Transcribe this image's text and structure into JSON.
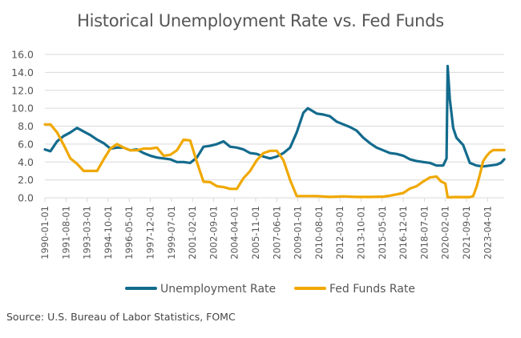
{
  "chart_data": {
    "type": "line",
    "title": "Historical Unemployment Rate vs. Fed Funds",
    "xlabel": "",
    "ylabel": "",
    "ylim": [
      0,
      16
    ],
    "yticks": [
      "0.0",
      "2.0",
      "4.0",
      "6.0",
      "8.0",
      "10.0",
      "12.0",
      "14.0",
      "16.0"
    ],
    "xticks": [
      "1990-01-01",
      "1991-08-01",
      "1993-03-01",
      "1994-10-01",
      "1996-05-01",
      "1997-12-01",
      "1999-07-01",
      "2001-02-01",
      "2002-09-01",
      "2004-04-01",
      "2005-11-01",
      "2007-06-01",
      "2009-01-01",
      "2010-08-01",
      "2012-03-01",
      "2013-10-01",
      "2015-05-01",
      "2016-12-01",
      "2018-07-01",
      "2020-02-01",
      "2021-09-01",
      "2023-04-01"
    ],
    "grid": true,
    "legend_position": "bottom-center",
    "source": "Source: U.S. Bureau of Labor Statistics, FOMC",
    "series": [
      {
        "name": "Unemployment Rate",
        "color": "#136B8D",
        "points": [
          [
            "1990-01",
            5.4
          ],
          [
            "1990-06",
            5.2
          ],
          [
            "1990-12",
            6.3
          ],
          [
            "1991-06",
            6.9
          ],
          [
            "1991-12",
            7.3
          ],
          [
            "1992-06",
            7.8
          ],
          [
            "1992-12",
            7.4
          ],
          [
            "1993-06",
            7.0
          ],
          [
            "1993-12",
            6.5
          ],
          [
            "1994-06",
            6.1
          ],
          [
            "1994-12",
            5.5
          ],
          [
            "1995-06",
            5.6
          ],
          [
            "1995-12",
            5.6
          ],
          [
            "1996-06",
            5.3
          ],
          [
            "1996-12",
            5.4
          ],
          [
            "1997-06",
            5.0
          ],
          [
            "1997-12",
            4.7
          ],
          [
            "1998-06",
            4.5
          ],
          [
            "1998-12",
            4.4
          ],
          [
            "1999-06",
            4.3
          ],
          [
            "1999-12",
            4.0
          ],
          [
            "2000-06",
            4.0
          ],
          [
            "2000-12",
            3.9
          ],
          [
            "2001-06",
            4.5
          ],
          [
            "2001-12",
            5.7
          ],
          [
            "2002-06",
            5.8
          ],
          [
            "2002-12",
            6.0
          ],
          [
            "2003-06",
            6.3
          ],
          [
            "2003-12",
            5.7
          ],
          [
            "2004-06",
            5.6
          ],
          [
            "2004-12",
            5.4
          ],
          [
            "2005-06",
            5.0
          ],
          [
            "2005-12",
            4.9
          ],
          [
            "2006-06",
            4.6
          ],
          [
            "2006-12",
            4.4
          ],
          [
            "2007-06",
            4.6
          ],
          [
            "2007-12",
            5.0
          ],
          [
            "2008-06",
            5.6
          ],
          [
            "2008-12",
            7.3
          ],
          [
            "2009-06",
            9.5
          ],
          [
            "2009-10",
            10.0
          ],
          [
            "2010-06",
            9.4
          ],
          [
            "2010-12",
            9.3
          ],
          [
            "2011-06",
            9.1
          ],
          [
            "2011-12",
            8.5
          ],
          [
            "2012-06",
            8.2
          ],
          [
            "2012-12",
            7.9
          ],
          [
            "2013-06",
            7.5
          ],
          [
            "2013-12",
            6.7
          ],
          [
            "2014-06",
            6.1
          ],
          [
            "2014-12",
            5.6
          ],
          [
            "2015-06",
            5.3
          ],
          [
            "2015-12",
            5.0
          ],
          [
            "2016-06",
            4.9
          ],
          [
            "2016-12",
            4.7
          ],
          [
            "2017-06",
            4.3
          ],
          [
            "2017-12",
            4.1
          ],
          [
            "2018-06",
            4.0
          ],
          [
            "2018-12",
            3.9
          ],
          [
            "2019-06",
            3.6
          ],
          [
            "2019-12",
            3.6
          ],
          [
            "2020-03",
            4.4
          ],
          [
            "2020-04",
            14.7
          ],
          [
            "2020-06",
            11.0
          ],
          [
            "2020-09",
            7.8
          ],
          [
            "2020-12",
            6.7
          ],
          [
            "2021-06",
            5.9
          ],
          [
            "2021-12",
            3.9
          ],
          [
            "2022-06",
            3.6
          ],
          [
            "2022-12",
            3.5
          ],
          [
            "2023-06",
            3.6
          ],
          [
            "2023-12",
            3.7
          ],
          [
            "2024-04",
            3.9
          ],
          [
            "2024-07",
            4.3
          ]
        ]
      },
      {
        "name": "Fed Funds Rate",
        "color": "#F0A800",
        "points": [
          [
            "1990-01",
            8.2
          ],
          [
            "1990-06",
            8.2
          ],
          [
            "1990-12",
            7.3
          ],
          [
            "1991-06",
            5.9
          ],
          [
            "1991-12",
            4.4
          ],
          [
            "1992-06",
            3.8
          ],
          [
            "1992-12",
            3.0
          ],
          [
            "1993-06",
            3.0
          ],
          [
            "1993-12",
            3.0
          ],
          [
            "1994-06",
            4.3
          ],
          [
            "1994-12",
            5.5
          ],
          [
            "1995-06",
            6.0
          ],
          [
            "1995-12",
            5.6
          ],
          [
            "1996-06",
            5.3
          ],
          [
            "1996-12",
            5.3
          ],
          [
            "1997-06",
            5.5
          ],
          [
            "1997-12",
            5.5
          ],
          [
            "1998-06",
            5.6
          ],
          [
            "1998-12",
            4.7
          ],
          [
            "1999-06",
            4.8
          ],
          [
            "1999-12",
            5.3
          ],
          [
            "2000-06",
            6.5
          ],
          [
            "2000-12",
            6.4
          ],
          [
            "2001-06",
            4.0
          ],
          [
            "2001-12",
            1.8
          ],
          [
            "2002-06",
            1.75
          ],
          [
            "2002-12",
            1.3
          ],
          [
            "2003-06",
            1.2
          ],
          [
            "2003-12",
            1.0
          ],
          [
            "2004-06",
            1.0
          ],
          [
            "2004-12",
            2.2
          ],
          [
            "2005-06",
            3.0
          ],
          [
            "2005-12",
            4.2
          ],
          [
            "2006-06",
            5.0
          ],
          [
            "2006-12",
            5.25
          ],
          [
            "2007-06",
            5.25
          ],
          [
            "2007-12",
            4.2
          ],
          [
            "2008-06",
            2.0
          ],
          [
            "2008-12",
            0.2
          ],
          [
            "2009-06",
            0.2
          ],
          [
            "2010-06",
            0.2
          ],
          [
            "2011-06",
            0.1
          ],
          [
            "2012-06",
            0.16
          ],
          [
            "2013-06",
            0.1
          ],
          [
            "2014-06",
            0.1
          ],
          [
            "2015-06",
            0.13
          ],
          [
            "2015-12",
            0.24
          ],
          [
            "2016-06",
            0.38
          ],
          [
            "2016-12",
            0.54
          ],
          [
            "2017-06",
            1.04
          ],
          [
            "2017-12",
            1.3
          ],
          [
            "2018-06",
            1.82
          ],
          [
            "2018-12",
            2.27
          ],
          [
            "2019-06",
            2.38
          ],
          [
            "2019-10",
            1.83
          ],
          [
            "2020-02",
            1.58
          ],
          [
            "2020-04",
            0.05
          ],
          [
            "2020-12",
            0.09
          ],
          [
            "2021-06",
            0.08
          ],
          [
            "2021-12",
            0.08
          ],
          [
            "2022-03",
            0.2
          ],
          [
            "2022-06",
            1.21
          ],
          [
            "2022-09",
            2.56
          ],
          [
            "2022-12",
            4.1
          ],
          [
            "2023-03",
            4.65
          ],
          [
            "2023-06",
            5.08
          ],
          [
            "2023-09",
            5.33
          ],
          [
            "2023-12",
            5.33
          ],
          [
            "2024-07",
            5.33
          ]
        ]
      }
    ]
  },
  "legend": {
    "items": [
      {
        "label": "Unemployment Rate",
        "color": "#136B8D"
      },
      {
        "label": "Fed Funds Rate",
        "color": "#F0A800"
      }
    ]
  }
}
